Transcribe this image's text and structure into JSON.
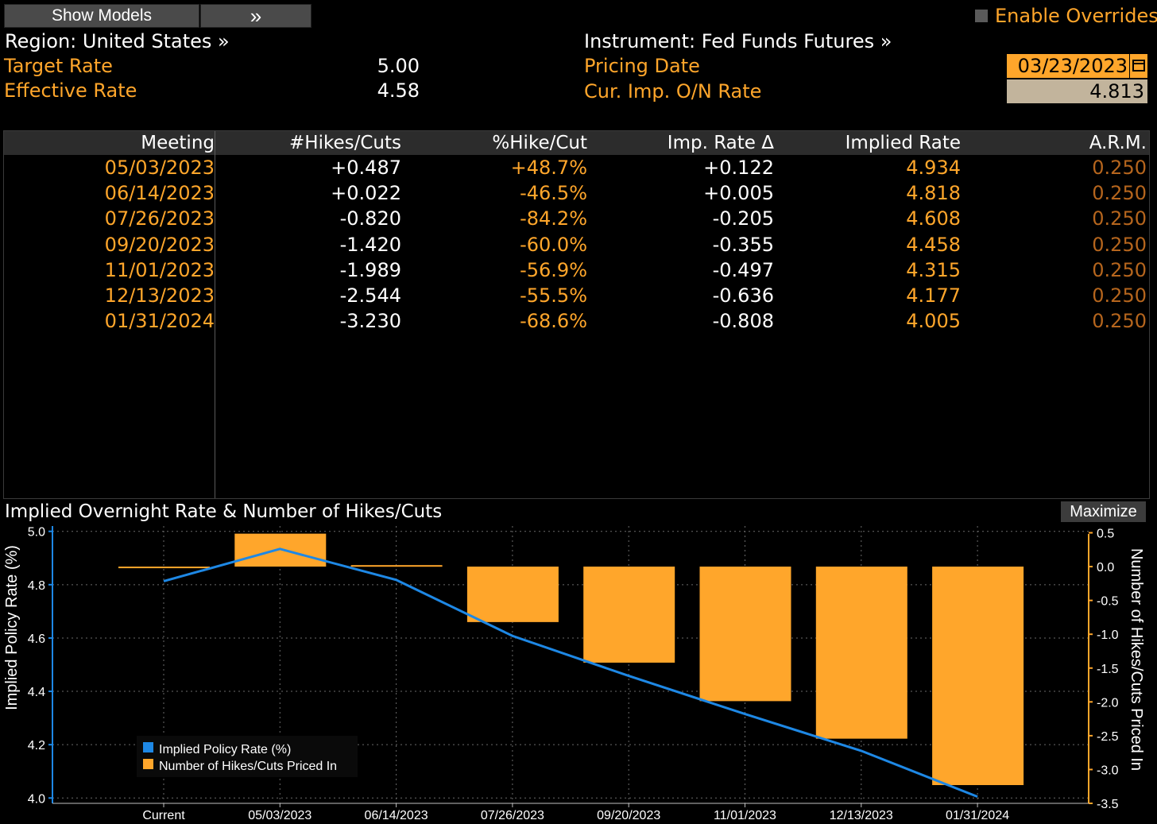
{
  "toolbar": {
    "show_models_label": "Show Models",
    "expand_label": "»",
    "enable_overrides_label": "Enable Overrides"
  },
  "header": {
    "region_label": "Region: United States »",
    "instrument_label": "Instrument: Fed Funds Futures »",
    "target_rate_label": "Target Rate",
    "target_rate_value": "5.00",
    "effective_rate_label": "Effective Rate",
    "effective_rate_value": "4.58",
    "pricing_date_label": "Pricing Date",
    "pricing_date_value": "03/23/2023",
    "cur_imp_rate_label": "Cur. Imp. O/N Rate",
    "cur_imp_rate_value": "4.813"
  },
  "table": {
    "columns": [
      "Meeting",
      "#Hikes/Cuts",
      "%Hike/Cut",
      "Imp. Rate Δ",
      "Implied Rate",
      "A.R.M."
    ],
    "rows": [
      [
        "05/03/2023",
        "+0.487",
        "+48.7%",
        "+0.122",
        "4.934",
        "0.250"
      ],
      [
        "06/14/2023",
        "+0.022",
        "-46.5%",
        "+0.005",
        "4.818",
        "0.250"
      ],
      [
        "07/26/2023",
        "-0.820",
        "-84.2%",
        "-0.205",
        "4.608",
        "0.250"
      ],
      [
        "09/20/2023",
        "-1.420",
        "-60.0%",
        "-0.355",
        "4.458",
        "0.250"
      ],
      [
        "11/01/2023",
        "-1.989",
        "-56.9%",
        "-0.497",
        "4.315",
        "0.250"
      ],
      [
        "12/13/2023",
        "-2.544",
        "-55.5%",
        "-0.636",
        "4.177",
        "0.250"
      ],
      [
        "01/31/2024",
        "-3.230",
        "-68.6%",
        "-0.808",
        "4.005",
        "0.250"
      ]
    ]
  },
  "chart": {
    "title": "Implied Overnight Rate & Number of Hikes/Cuts",
    "maximize_label": "Maximize"
  },
  "colors": {
    "accent_orange": "#ffa62b",
    "line_blue": "#1e88e5",
    "background": "#000000"
  },
  "chart_data": {
    "type": "bar",
    "title": "Implied Overnight Rate & Number of Hikes/Cuts",
    "categories": [
      "Current",
      "05/03/2023",
      "06/14/2023",
      "07/26/2023",
      "09/20/2023",
      "11/01/2023",
      "12/13/2023",
      "01/31/2024"
    ],
    "series": [
      {
        "name": "Implied Policy Rate (%)",
        "type": "line",
        "axis": "left",
        "values": [
          4.813,
          4.934,
          4.818,
          4.608,
          4.458,
          4.315,
          4.177,
          4.005
        ]
      },
      {
        "name": "Number of Hikes/Cuts Priced In",
        "type": "bar",
        "axis": "right",
        "values": [
          0.0,
          0.487,
          0.022,
          -0.82,
          -1.42,
          -1.989,
          -2.544,
          -3.23
        ]
      }
    ],
    "ylabel": "Implied Policy Rate (%)",
    "ylabel_right": "Number of Hikes/Cuts Priced In",
    "ylim": [
      3.98,
      5.02
    ],
    "ylim_right": [
      -3.5,
      0.6
    ],
    "yticks": [
      "4.0",
      "4.2",
      "4.4",
      "4.6",
      "4.8",
      "5.0"
    ],
    "yticks_right": [
      "-3.5",
      "-3.0",
      "-2.5",
      "-2.0",
      "-1.5",
      "-1.0",
      "-0.5",
      "0.0",
      "0.5"
    ],
    "grid": true,
    "legend": "bottom-left"
  }
}
